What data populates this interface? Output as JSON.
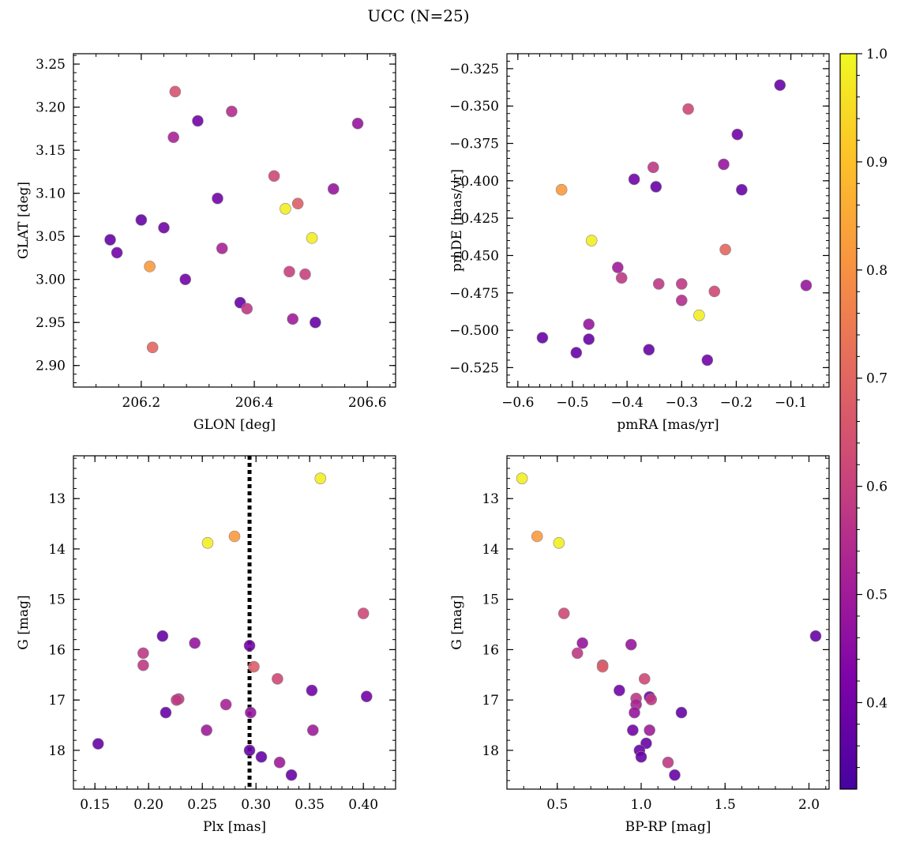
{
  "figure": {
    "title": "UCC (N=25)"
  },
  "colorbar": {
    "colormap": "plasma",
    "vmin": 0.32,
    "vmax": 1.0,
    "ticks": [
      "0.4",
      "0.5",
      "0.6",
      "0.7",
      "0.8",
      "0.9",
      "1.0"
    ]
  },
  "chart_data": [
    {
      "type": "scatter",
      "xlabel": "GLON [deg]",
      "ylabel": "GLAT [deg]",
      "xlim": [
        206.08,
        206.65
      ],
      "ylim": [
        2.875,
        3.262
      ],
      "y_inverted": false,
      "xticks": [
        "206.2",
        "206.4",
        "206.6"
      ],
      "yticks": [
        "2.90",
        "2.95",
        "3.00",
        "3.05",
        "3.10",
        "3.15",
        "3.20",
        "3.25"
      ],
      "points": [
        {
          "x": 206.26,
          "y": 3.218,
          "c": 0.65
        },
        {
          "x": 206.36,
          "y": 3.195,
          "c": 0.55
        },
        {
          "x": 206.3,
          "y": 3.184,
          "c": 0.4
        },
        {
          "x": 206.583,
          "y": 3.181,
          "c": 0.48
        },
        {
          "x": 206.257,
          "y": 3.165,
          "c": 0.52
        },
        {
          "x": 206.435,
          "y": 3.12,
          "c": 0.62
        },
        {
          "x": 206.54,
          "y": 3.105,
          "c": 0.48
        },
        {
          "x": 206.335,
          "y": 3.094,
          "c": 0.4
        },
        {
          "x": 206.477,
          "y": 3.088,
          "c": 0.68
        },
        {
          "x": 206.455,
          "y": 3.082,
          "c": 0.98
        },
        {
          "x": 206.2,
          "y": 3.069,
          "c": 0.38
        },
        {
          "x": 206.24,
          "y": 3.06,
          "c": 0.4
        },
        {
          "x": 206.502,
          "y": 3.048,
          "c": 0.98
        },
        {
          "x": 206.145,
          "y": 3.046,
          "c": 0.38
        },
        {
          "x": 206.343,
          "y": 3.036,
          "c": 0.52
        },
        {
          "x": 206.157,
          "y": 3.031,
          "c": 0.4
        },
        {
          "x": 206.215,
          "y": 3.015,
          "c": 0.82
        },
        {
          "x": 206.462,
          "y": 3.009,
          "c": 0.6
        },
        {
          "x": 206.49,
          "y": 3.006,
          "c": 0.6
        },
        {
          "x": 206.278,
          "y": 3.0,
          "c": 0.4
        },
        {
          "x": 206.375,
          "y": 2.973,
          "c": 0.38
        },
        {
          "x": 206.387,
          "y": 2.966,
          "c": 0.58
        },
        {
          "x": 206.468,
          "y": 2.954,
          "c": 0.5
        },
        {
          "x": 206.508,
          "y": 2.95,
          "c": 0.38
        },
        {
          "x": 206.22,
          "y": 2.921,
          "c": 0.7
        }
      ]
    },
    {
      "type": "scatter",
      "xlabel": "pmRA [mas/yr]",
      "ylabel": "pmDE [mas/yr]",
      "xlim": [
        -0.62,
        -0.03
      ],
      "ylim": [
        -0.538,
        -0.315
      ],
      "y_inverted": false,
      "xticks": [
        "−0.6",
        "−0.5",
        "−0.4",
        "−0.3",
        "−0.2",
        "−0.1"
      ],
      "yticks": [
        "−0.525",
        "−0.500",
        "−0.475",
        "−0.450",
        "−0.425",
        "−0.400",
        "−0.375",
        "−0.350",
        "−0.325"
      ],
      "points": [
        {
          "x": -0.12,
          "y": -0.336,
          "c": 0.38
        },
        {
          "x": -0.288,
          "y": -0.352,
          "c": 0.62
        },
        {
          "x": -0.198,
          "y": -0.369,
          "c": 0.4
        },
        {
          "x": -0.223,
          "y": -0.389,
          "c": 0.48
        },
        {
          "x": -0.352,
          "y": -0.391,
          "c": 0.58
        },
        {
          "x": -0.387,
          "y": -0.399,
          "c": 0.4
        },
        {
          "x": -0.347,
          "y": -0.404,
          "c": 0.38
        },
        {
          "x": -0.52,
          "y": -0.406,
          "c": 0.82
        },
        {
          "x": -0.19,
          "y": -0.406,
          "c": 0.38
        },
        {
          "x": -0.465,
          "y": -0.44,
          "c": 0.98
        },
        {
          "x": -0.22,
          "y": -0.446,
          "c": 0.7
        },
        {
          "x": -0.417,
          "y": -0.458,
          "c": 0.5
        },
        {
          "x": -0.41,
          "y": -0.465,
          "c": 0.58
        },
        {
          "x": -0.342,
          "y": -0.469,
          "c": 0.58
        },
        {
          "x": -0.3,
          "y": -0.469,
          "c": 0.58
        },
        {
          "x": -0.072,
          "y": -0.47,
          "c": 0.48
        },
        {
          "x": -0.24,
          "y": -0.474,
          "c": 0.62
        },
        {
          "x": -0.3,
          "y": -0.48,
          "c": 0.55
        },
        {
          "x": -0.268,
          "y": -0.49,
          "c": 0.98
        },
        {
          "x": -0.47,
          "y": -0.496,
          "c": 0.48
        },
        {
          "x": -0.47,
          "y": -0.506,
          "c": 0.38
        },
        {
          "x": -0.555,
          "y": -0.505,
          "c": 0.38
        },
        {
          "x": -0.36,
          "y": -0.513,
          "c": 0.38
        },
        {
          "x": -0.493,
          "y": -0.515,
          "c": 0.38
        },
        {
          "x": -0.253,
          "y": -0.52,
          "c": 0.4
        }
      ]
    },
    {
      "type": "scatter",
      "xlabel": "Plx [mas]",
      "ylabel": "G [mag]",
      "xlim": [
        0.13,
        0.43
      ],
      "ylim": [
        18.77,
        12.15
      ],
      "y_inverted": true,
      "xticks": [
        "0.15",
        "0.20",
        "0.25",
        "0.30",
        "0.35",
        "0.40"
      ],
      "yticks": [
        "13",
        "14",
        "15",
        "16",
        "17",
        "18"
      ],
      "vline": 0.294,
      "points": [
        {
          "x": 0.36,
          "y": 12.6,
          "c": 0.98
        },
        {
          "x": 0.28,
          "y": 13.75,
          "c": 0.82
        },
        {
          "x": 0.255,
          "y": 13.88,
          "c": 0.98
        },
        {
          "x": 0.4,
          "y": 15.28,
          "c": 0.62
        },
        {
          "x": 0.213,
          "y": 15.73,
          "c": 0.38
        },
        {
          "x": 0.243,
          "y": 15.87,
          "c": 0.48
        },
        {
          "x": 0.294,
          "y": 15.92,
          "c": 0.4
        },
        {
          "x": 0.195,
          "y": 16.07,
          "c": 0.58
        },
        {
          "x": 0.195,
          "y": 16.31,
          "c": 0.58
        },
        {
          "x": 0.298,
          "y": 16.34,
          "c": 0.68
        },
        {
          "x": 0.32,
          "y": 16.58,
          "c": 0.62
        },
        {
          "x": 0.352,
          "y": 16.81,
          "c": 0.4
        },
        {
          "x": 0.403,
          "y": 16.93,
          "c": 0.4
        },
        {
          "x": 0.228,
          "y": 16.98,
          "c": 0.58
        },
        {
          "x": 0.226,
          "y": 17.0,
          "c": 0.58
        },
        {
          "x": 0.272,
          "y": 17.09,
          "c": 0.52
        },
        {
          "x": 0.216,
          "y": 17.25,
          "c": 0.38
        },
        {
          "x": 0.295,
          "y": 17.25,
          "c": 0.48
        },
        {
          "x": 0.254,
          "y": 17.6,
          "c": 0.5
        },
        {
          "x": 0.353,
          "y": 17.6,
          "c": 0.5
        },
        {
          "x": 0.153,
          "y": 17.87,
          "c": 0.38
        },
        {
          "x": 0.294,
          "y": 18.0,
          "c": 0.38
        },
        {
          "x": 0.305,
          "y": 18.13,
          "c": 0.38
        },
        {
          "x": 0.322,
          "y": 18.24,
          "c": 0.5
        },
        {
          "x": 0.333,
          "y": 18.49,
          "c": 0.38
        }
      ]
    },
    {
      "type": "scatter",
      "xlabel": "BP-RP [mag]",
      "ylabel": "G [mag]",
      "xlim": [
        0.2,
        2.12
      ],
      "ylim": [
        18.77,
        12.15
      ],
      "y_inverted": true,
      "xticks": [
        "0.5",
        "1.0",
        "1.5",
        "2.0"
      ],
      "yticks": [
        "13",
        "14",
        "15",
        "16",
        "17",
        "18"
      ],
      "points": [
        {
          "x": 0.29,
          "y": 12.6,
          "c": 0.98
        },
        {
          "x": 0.38,
          "y": 13.75,
          "c": 0.82
        },
        {
          "x": 0.51,
          "y": 13.88,
          "c": 0.98
        },
        {
          "x": 0.54,
          "y": 15.28,
          "c": 0.62
        },
        {
          "x": 2.04,
          "y": 15.73,
          "c": 0.38
        },
        {
          "x": 0.65,
          "y": 15.87,
          "c": 0.48
        },
        {
          "x": 0.94,
          "y": 15.9,
          "c": 0.48
        },
        {
          "x": 0.62,
          "y": 16.07,
          "c": 0.58
        },
        {
          "x": 0.77,
          "y": 16.31,
          "c": 0.62
        },
        {
          "x": 0.77,
          "y": 16.34,
          "c": 0.68
        },
        {
          "x": 1.02,
          "y": 16.58,
          "c": 0.62
        },
        {
          "x": 0.87,
          "y": 16.81,
          "c": 0.4
        },
        {
          "x": 1.05,
          "y": 16.94,
          "c": 0.4
        },
        {
          "x": 0.97,
          "y": 16.97,
          "c": 0.58
        },
        {
          "x": 1.06,
          "y": 16.99,
          "c": 0.58
        },
        {
          "x": 0.97,
          "y": 17.09,
          "c": 0.52
        },
        {
          "x": 1.24,
          "y": 17.25,
          "c": 0.38
        },
        {
          "x": 0.96,
          "y": 17.25,
          "c": 0.48
        },
        {
          "x": 0.95,
          "y": 17.6,
          "c": 0.4
        },
        {
          "x": 1.05,
          "y": 17.6,
          "c": 0.5
        },
        {
          "x": 1.03,
          "y": 17.86,
          "c": 0.38
        },
        {
          "x": 0.99,
          "y": 18.0,
          "c": 0.38
        },
        {
          "x": 1.0,
          "y": 18.13,
          "c": 0.38
        },
        {
          "x": 1.16,
          "y": 18.24,
          "c": 0.58
        },
        {
          "x": 1.2,
          "y": 18.49,
          "c": 0.38
        }
      ]
    }
  ]
}
